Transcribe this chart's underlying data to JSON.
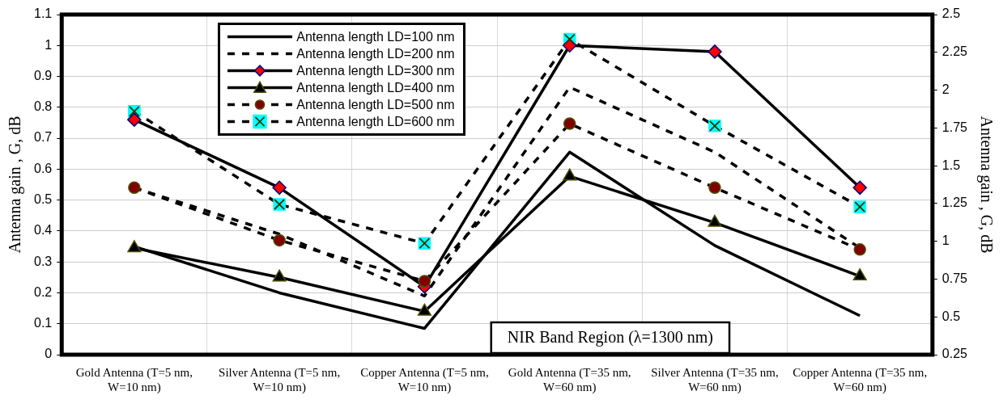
{
  "chart_data": {
    "type": "line",
    "categories": [
      "Gold Antenna (T=5 nm, W=10 nm)",
      "Silver Antenna (T=5 nm, W=10 nm)",
      "Copper Antenna (T=5 nm, W=10 nm)",
      "Gold Antenna (T=35 nm, W=60 nm)",
      "Silver Antenna (T=35 nm, W=60 nm)",
      "Copper Antenna (T=35 nm, W=60 nm)"
    ],
    "series": [
      {
        "name": "Antenna length LD=100 nm",
        "color": "#000000",
        "marker": "none",
        "line_style": "solid",
        "values": [
          0.35,
          0.2,
          0.085,
          0.655,
          0.353,
          0.126
        ]
      },
      {
        "name": "Antenna length LD=200 nm",
        "color": "#000000",
        "marker": "none",
        "line_style": "dashed",
        "values": [
          0.54,
          0.39,
          0.19,
          0.865,
          0.655,
          0.345
        ]
      },
      {
        "name": "Antenna length LD=300 nm",
        "color": "#000000",
        "colors": [
          "#ff0000",
          "#ff0000",
          "#ff0000",
          "#ff0000",
          "#ff0000",
          "#ff0000"
        ],
        "marker": "diamond",
        "line_style": "solid",
        "values": [
          0.76,
          0.54,
          0.22,
          1.0,
          0.98,
          0.54
        ]
      },
      {
        "name": "Antenna length LD=400 nm",
        "color": "#000000",
        "colors": [
          "#000000",
          "#000000",
          "#000000",
          "#000000",
          "#000000",
          "#000000"
        ],
        "marker": "triangle",
        "line_style": "solid",
        "values": [
          0.345,
          0.25,
          0.14,
          0.577,
          0.427,
          0.254
        ]
      },
      {
        "name": "Antenna length LD=500 nm",
        "color": "#000000",
        "colors": [
          "#800000",
          "#800000",
          "#800000",
          "#800000",
          "#800000",
          "#800000"
        ],
        "marker": "circle",
        "line_style": "dashed",
        "values": [
          0.54,
          0.37,
          0.238,
          0.747,
          0.54,
          0.34
        ]
      },
      {
        "name": "Antenna length LD=600 nm",
        "color": "#000000",
        "colors": [
          "#00ffff",
          "#00ffff",
          "#00ffff",
          "#00ffff",
          "#00ffff",
          "#00ffff"
        ],
        "marker": "square",
        "line_style": "dashed",
        "values": [
          0.787,
          0.486,
          0.36,
          1.02,
          0.74,
          0.478
        ]
      }
    ],
    "ylabel": "Antenna gain , G, dB",
    "y2label": "Antenna gain , G, dB",
    "ylim": [
      0,
      1.1
    ],
    "yticks": [
      0,
      0.1,
      0.2,
      0.3,
      0.4,
      0.5,
      0.6,
      0.7,
      0.8,
      0.9,
      1,
      1.1
    ],
    "y2lim": [
      0.25,
      2.5
    ],
    "y2ticks": [
      0.25,
      0.5,
      0.75,
      1,
      1.25,
      1.5,
      1.75,
      2,
      2.25,
      2.5
    ],
    "annotations": [
      "NIR Band Region (λ=1300 nm)"
    ],
    "grid": true,
    "legend": "top left"
  }
}
